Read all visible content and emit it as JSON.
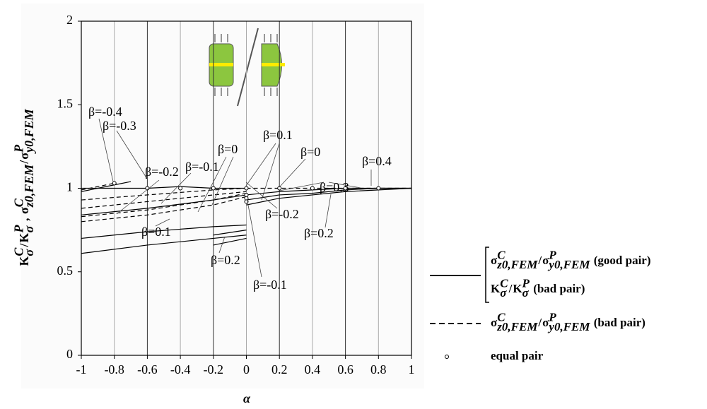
{
  "chart_data": {
    "type": "line",
    "x_label": "α",
    "y_label": [
      {
        "t": "K",
        "sup": "C",
        "sub": "σ"
      },
      {
        "t": "/"
      },
      {
        "t": "K",
        "sup": "P",
        "sub": "σ"
      },
      {
        "t": " , "
      },
      {
        "t": "σ",
        "sup": "C",
        "sub": "z0,FEM"
      },
      {
        "t": "/"
      },
      {
        "t": "σ",
        "sup": "P",
        "sub": "y0,FEM"
      }
    ],
    "xlim": [
      -1,
      1
    ],
    "xticks": [
      -1,
      -0.8,
      -0.6,
      -0.4,
      -0.2,
      0,
      0.2,
      0.4,
      0.6,
      0.8,
      1
    ],
    "ylim": [
      0,
      2
    ],
    "yticks": [
      0,
      0.5,
      1,
      1.5,
      2
    ],
    "grid": true,
    "color": "#000000",
    "series": [
      {
        "style": "solid",
        "x": [
          -1,
          -0.6,
          -0.2,
          0
        ],
        "values": [
          0.61,
          0.66,
          0.7,
          0.72
        ]
      },
      {
        "style": "solid",
        "x": [
          -1,
          -0.6,
          -0.2,
          0
        ],
        "values": [
          0.7,
          0.74,
          0.77,
          0.78
        ]
      },
      {
        "style": "solid",
        "x": [
          -0.2,
          0
        ],
        "values": [
          0.66,
          0.7
        ]
      },
      {
        "style": "solid",
        "x": [
          -0.2,
          0
        ],
        "values": [
          0.72,
          0.75
        ]
      },
      {
        "style": "solid",
        "x": [
          -1,
          -0.6,
          -0.2,
          0
        ],
        "values": [
          0.84,
          0.88,
          0.93,
          0.96
        ]
      },
      {
        "style": "solid",
        "x": [
          -1,
          -0.6,
          -0.4,
          -0.2,
          0
        ],
        "values": [
          1.0,
          1.0,
          1.01,
          1.0,
          1.0
        ]
      },
      {
        "style": "solid",
        "x": [
          -1,
          -0.8,
          -0.7
        ],
        "values": [
          0.98,
          1.02,
          1.04
        ]
      },
      {
        "style": "solid",
        "x": [
          0,
          0.2,
          0.4,
          0.6,
          0.8,
          1
        ],
        "values": [
          0.9,
          0.94,
          0.96,
          0.98,
          0.99,
          1.0
        ]
      },
      {
        "style": "solid",
        "x": [
          0,
          0.2,
          0.4,
          0.6,
          0.8,
          1
        ],
        "values": [
          0.93,
          0.96,
          0.97,
          0.99,
          1.0,
          1.0
        ]
      },
      {
        "style": "solid",
        "x": [
          0,
          0.2,
          0.4,
          0.6,
          0.8,
          1
        ],
        "values": [
          0.96,
          0.98,
          0.99,
          1.0,
          1.0,
          1.0
        ]
      },
      {
        "style": "dashed",
        "x": [
          -1,
          -0.6,
          -0.2,
          0
        ],
        "values": [
          0.8,
          0.84,
          0.9,
          0.95
        ]
      },
      {
        "style": "dashed",
        "x": [
          -1,
          -0.6,
          -0.2,
          0
        ],
        "values": [
          0.83,
          0.87,
          0.93,
          0.97
        ]
      },
      {
        "style": "dashed",
        "x": [
          -1,
          -0.6,
          -0.2,
          0
        ],
        "values": [
          0.88,
          0.92,
          0.96,
          0.98
        ]
      },
      {
        "style": "dashed",
        "x": [
          -1,
          -0.6,
          -0.2,
          0
        ],
        "values": [
          0.93,
          0.96,
          0.99,
          1.0
        ]
      },
      {
        "style": "dashed",
        "x": [
          -1,
          -0.8
        ],
        "values": [
          0.99,
          1.03
        ]
      },
      {
        "style": "dashed",
        "x": [
          0,
          0.4,
          0.8,
          1
        ],
        "values": [
          1.0,
          1.0,
          1.0,
          1.0
        ]
      }
    ],
    "equal_pairs": {
      "x": [
        -0.8,
        -0.6,
        -0.4,
        -0.2,
        0,
        0,
        0,
        0,
        0.2,
        0.4,
        0.6,
        0.8
      ],
      "values": [
        1.03,
        1.0,
        1.0,
        1.0,
        1.0,
        0.96,
        0.94,
        0.92,
        1.0,
        1.0,
        1.0,
        1.0
      ]
    },
    "annotations": [
      "β=-0.4",
      "β=-0.3",
      "β=-0.2",
      "β=-0.1",
      "β=0",
      "β=0.1",
      "β=0",
      "β=0.3",
      "β=0.4",
      "β=-0.2",
      "β=0.2",
      "β=0.1",
      "β=0.2",
      "β=-0.1"
    ],
    "legend": [
      {
        "style": "solid",
        "labels": [
          [
            {
              "t": "σ",
              "sup": "C",
              "sub": "z0,FEM"
            },
            {
              "t": "/"
            },
            {
              "t": "σ",
              "sup": "P",
              "sub": "y0,FEM"
            },
            {
              "t": " (good pair)"
            }
          ],
          [
            {
              "t": "K",
              "sup": "C",
              "sub": "σ"
            },
            {
              "t": "/"
            },
            {
              "t": "K",
              "sup": "P",
              "sub": "σ"
            },
            {
              "t": " (bad pair)"
            }
          ]
        ]
      },
      {
        "style": "dashed",
        "labels": [
          [
            {
              "t": "σ",
              "sup": "C",
              "sub": "z0,FEM"
            },
            {
              "t": "/"
            },
            {
              "t": "σ",
              "sup": "P",
              "sub": "y0,FEM"
            },
            {
              "t": " (bad pair)"
            }
          ]
        ]
      },
      {
        "style": "marker",
        "labels": [
          [
            {
              "t": "equal pair"
            }
          ]
        ]
      }
    ]
  }
}
